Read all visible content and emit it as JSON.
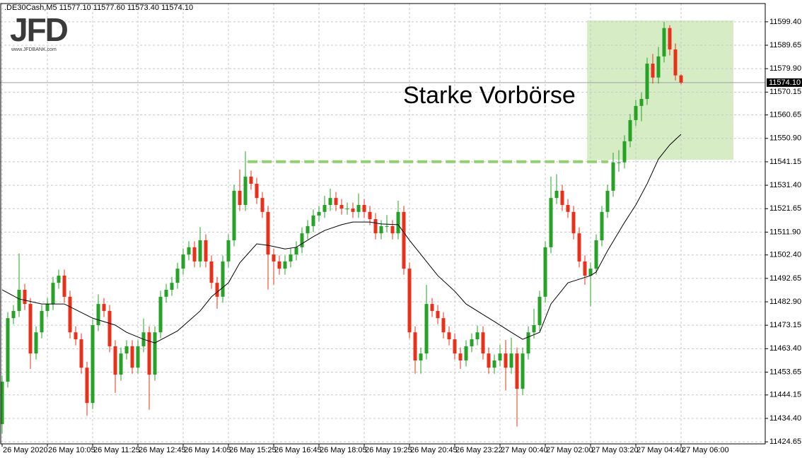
{
  "chart_data": {
    "type": "candlestick",
    "header_text": ".DE30Cash,M5  11577.10 11577.60 11573.40 11574.10",
    "logo": {
      "title": "JFD",
      "subtitle": "www.JFDBANK.com"
    },
    "annotation": "Starke Vorbörse",
    "up_color": "#26a326",
    "down_color": "#e8301a",
    "open": [
      11432.0,
      11449.7,
      11476.1,
      11479.1,
      11487.9,
      11482.0,
      11461.4,
      11470.2,
      11479.1,
      11482.0,
      11490.8,
      11493.8,
      11485.0,
      11470.2,
      11467.3,
      11455.5,
      11440.8,
      11473.2,
      11482.0,
      11479.1,
      11464.4,
      11452.6,
      11461.4,
      11464.4,
      11455.5,
      11464.4,
      11470.2,
      11452.6,
      11470.2,
      11485.0,
      11487.9,
      11490.8,
      11496.7,
      11502.6,
      11505.6,
      11499.7,
      11508.5,
      11499.7,
      11490.8,
      11485.0,
      11499.7,
      11508.5,
      11529.1,
      11523.2,
      11535.0,
      11532.0,
      11526.1,
      11520.3,
      11502.6,
      11499.7,
      11496.7,
      11499.7,
      11502.6,
      11505.6,
      11511.4,
      11514.4,
      11518.8,
      11520.3,
      11523.2,
      11526.1,
      11523.2,
      11521.7,
      11521.7,
      11520.3,
      11523.2,
      11520.3,
      11517.3,
      11511.4,
      11514.4,
      11514.4,
      11511.4,
      11520.3,
      11496.7,
      11470.2,
      11458.5,
      11461.4,
      11482.0,
      11479.1,
      11476.1,
      11470.2,
      11467.3,
      11461.4,
      11458.5,
      11464.4,
      11467.3,
      11470.2,
      11461.4,
      11455.5,
      11458.5,
      11461.4,
      11455.5,
      11461.4,
      11446.7,
      11461.4,
      11470.2,
      11473.2,
      11485.0,
      11505.6,
      11526.1,
      11529.1,
      11523.2,
      11520.3,
      11511.4,
      11499.7,
      11493.8,
      11496.7,
      11508.5,
      11520.3,
      11529.1,
      11540.9,
      11540.9,
      11549.7,
      11558.5,
      11564.4,
      11567.3,
      11582.0,
      11576.2,
      11585.0,
      11596.8,
      11587.9,
      11577.1
    ],
    "high": [
      11452.2,
      11478.6,
      11481.6,
      11503.0,
      11490.4,
      11484.5,
      11472.7,
      11481.6,
      11484.5,
      11493.3,
      11496.3,
      11496.3,
      11487.5,
      11472.7,
      11469.8,
      11458.0,
      11475.7,
      11486.0,
      11484.5,
      11481.6,
      11466.9,
      11463.9,
      11466.9,
      11466.9,
      11466.9,
      11476.0,
      11472.7,
      11472.7,
      11487.5,
      11490.4,
      11493.3,
      11499.2,
      11505.1,
      11508.1,
      11508.1,
      11514.0,
      11511.0,
      11502.2,
      11493.3,
      11502.2,
      11511.0,
      11531.6,
      11538.0,
      11545.5,
      11537.5,
      11534.5,
      11528.6,
      11522.8,
      11505.1,
      11502.2,
      11502.2,
      11505.1,
      11508.1,
      11513.9,
      11516.9,
      11521.3,
      11522.8,
      11527.0,
      11530.0,
      11528.6,
      11525.7,
      11524.2,
      11524.2,
      11528.0,
      11525.7,
      11522.8,
      11519.8,
      11516.9,
      11519.0,
      11516.9,
      11525.0,
      11522.8,
      11499.2,
      11472.7,
      11463.9,
      11490.0,
      11484.5,
      11481.6,
      11478.6,
      11472.7,
      11469.8,
      11463.9,
      11466.9,
      11469.8,
      11473.0,
      11472.7,
      11463.9,
      11461.0,
      11465.0,
      11467.0,
      11468.0,
      11463.9,
      11463.9,
      11472.7,
      11480.0,
      11487.5,
      11508.1,
      11535.0,
      11536.0,
      11531.6,
      11525.7,
      11522.8,
      11513.9,
      11502.2,
      11499.2,
      11511.0,
      11522.8,
      11531.6,
      11545.0,
      11546.0,
      11552.2,
      11561.0,
      11566.9,
      11570.0,
      11584.5,
      11586.0,
      11589.0,
      11599.4,
      11598.0,
      11590.4,
      11577.6
    ],
    "low": [
      11428.0,
      11447.2,
      11473.6,
      11476.6,
      11479.5,
      11455.0,
      11458.9,
      11467.7,
      11476.6,
      11479.5,
      11488.3,
      11482.5,
      11467.7,
      11464.8,
      11453.0,
      11435.5,
      11438.3,
      11470.7,
      11476.6,
      11461.9,
      11445.0,
      11450.1,
      11458.9,
      11453.0,
      11453.0,
      11461.9,
      11438.0,
      11450.1,
      11467.7,
      11482.5,
      11485.4,
      11488.3,
      11494.2,
      11500.1,
      11497.2,
      11497.2,
      11497.2,
      11488.3,
      11480.0,
      11482.5,
      11497.2,
      11506.0,
      11520.7,
      11520.7,
      11529.5,
      11523.6,
      11517.8,
      11488.0,
      11490.0,
      11494.2,
      11494.2,
      11497.2,
      11500.1,
      11503.1,
      11508.9,
      11511.9,
      11516.3,
      11517.8,
      11520.7,
      11520.7,
      11519.2,
      11519.2,
      11517.8,
      11517.8,
      11517.8,
      11514.8,
      11508.9,
      11508.9,
      11511.9,
      11508.9,
      11508.9,
      11494.2,
      11467.7,
      11453.0,
      11453.0,
      11458.9,
      11476.6,
      11473.6,
      11467.7,
      11464.8,
      11458.9,
      11455.0,
      11456.0,
      11461.9,
      11464.8,
      11458.9,
      11453.0,
      11453.0,
      11456.0,
      11446.0,
      11453.0,
      11431.0,
      11444.2,
      11458.9,
      11467.7,
      11470.7,
      11482.5,
      11503.1,
      11523.6,
      11520.7,
      11517.8,
      11508.9,
      11497.2,
      11490.0,
      11481.0,
      11494.2,
      11506.0,
      11517.8,
      11526.6,
      11537.0,
      11538.4,
      11547.2,
      11556.0,
      11558.0,
      11564.8,
      11573.7,
      11573.7,
      11582.5,
      11585.4,
      11575.0,
      11573.4
    ],
    "close": [
      11449.7,
      11476.1,
      11479.1,
      11487.9,
      11482.0,
      11461.4,
      11470.2,
      11479.1,
      11482.0,
      11490.8,
      11493.8,
      11485.0,
      11470.2,
      11467.3,
      11455.5,
      11440.8,
      11473.2,
      11482.0,
      11479.1,
      11464.4,
      11452.6,
      11461.4,
      11464.4,
      11455.5,
      11464.4,
      11470.2,
      11452.6,
      11470.2,
      11485.0,
      11487.9,
      11490.8,
      11496.7,
      11502.6,
      11505.6,
      11499.7,
      11508.5,
      11499.7,
      11490.8,
      11485.0,
      11499.7,
      11508.5,
      11529.1,
      11523.2,
      11535.0,
      11532.0,
      11526.1,
      11520.3,
      11502.6,
      11499.7,
      11496.7,
      11499.7,
      11502.6,
      11505.6,
      11511.4,
      11514.4,
      11518.8,
      11520.3,
      11523.2,
      11526.1,
      11523.2,
      11521.7,
      11521.7,
      11520.3,
      11523.2,
      11520.3,
      11517.3,
      11511.4,
      11514.4,
      11514.4,
      11511.4,
      11520.3,
      11496.7,
      11470.2,
      11458.5,
      11461.4,
      11482.0,
      11479.1,
      11476.1,
      11470.2,
      11467.3,
      11461.4,
      11458.5,
      11464.4,
      11467.3,
      11470.2,
      11461.4,
      11455.5,
      11458.5,
      11461.4,
      11455.5,
      11461.4,
      11446.7,
      11461.4,
      11470.2,
      11473.2,
      11485.0,
      11505.6,
      11526.1,
      11529.1,
      11523.2,
      11520.3,
      11511.4,
      11499.7,
      11493.8,
      11496.7,
      11508.5,
      11520.3,
      11529.1,
      11540.9,
      11540.9,
      11549.7,
      11558.5,
      11564.4,
      11567.3,
      11582.0,
      11576.2,
      11585.0,
      11596.8,
      11587.9,
      11577.1,
      11574.1
    ],
    "ma": {
      "color": "#000000",
      "x": [
        0,
        3,
        7,
        11,
        16,
        20,
        22,
        25,
        27,
        31,
        35,
        37,
        40,
        42,
        45,
        47,
        50,
        52,
        55,
        57,
        60,
        62,
        65,
        67,
        70,
        72,
        75,
        77,
        80,
        82,
        85,
        87,
        90,
        92,
        95,
        97,
        100,
        102,
        104,
        105,
        107,
        110,
        112,
        114,
        116,
        118,
        120
      ],
      "values": [
        11487.9,
        11484.1,
        11482.0,
        11482.0,
        11476.1,
        11473.2,
        11470.2,
        11467.3,
        11465.8,
        11470.8,
        11479.1,
        11485.0,
        11490.8,
        11499.1,
        11507.0,
        11506.4,
        11504.9,
        11505.6,
        11510.0,
        11512.6,
        11515.0,
        11516.1,
        11516.1,
        11515.3,
        11515.0,
        11508.5,
        11499.7,
        11493.8,
        11487.3,
        11482.0,
        11477.6,
        11474.7,
        11470.2,
        11467.3,
        11470.2,
        11482.0,
        11490.8,
        11492.3,
        11493.8,
        11495.3,
        11504.1,
        11515.9,
        11523.2,
        11532.0,
        11542.3,
        11548.2,
        11552.6
      ]
    },
    "highlight": {
      "color": "#d6ecc4",
      "x": [
        103.4,
        129.25
      ],
      "y": [
        11542.0,
        11600.0
      ]
    },
    "level": {
      "color": "#8fd16a",
      "value": 11541.2,
      "x": [
        43.4,
        107.1
      ]
    },
    "current_price": {
      "value": 11574.1,
      "label": "11574.10"
    },
    "xlim": [
      -0.375,
      134.875
    ],
    "ylim": [
      11423.8,
      11607.0
    ],
    "grid": true,
    "xticks": [
      {
        "value": 0,
        "label": "26 May 2020"
      },
      {
        "value": 8,
        "label": "26 May 10:05"
      },
      {
        "value": 16,
        "label": "26 May 11:25"
      },
      {
        "value": 24,
        "label": "26 May 12:45"
      },
      {
        "value": 32,
        "label": "26 May 14:05"
      },
      {
        "value": 40,
        "label": "26 May 15:25"
      },
      {
        "value": 48,
        "label": "26 May 16:45"
      },
      {
        "value": 56,
        "label": "26 May 18:05"
      },
      {
        "value": 64,
        "label": "26 May 19:25"
      },
      {
        "value": 72,
        "label": "26 May 20:45"
      },
      {
        "value": 80,
        "label": "26 May 23:22"
      },
      {
        "value": 88,
        "label": "27 May 00:40"
      },
      {
        "value": 96,
        "label": "27 May 02:00"
      },
      {
        "value": 104,
        "label": "27 May 03:20"
      },
      {
        "value": 112,
        "label": "27 May 04:40"
      },
      {
        "value": 120,
        "label": "27 May 06:00"
      }
    ],
    "yticks": [
      {
        "value": 11599.4,
        "label": "11599.40"
      },
      {
        "value": 11589.65,
        "label": "11589.65"
      },
      {
        "value": 11579.9,
        "label": "11579.90"
      },
      {
        "value": 11570.15,
        "label": "11570.15"
      },
      {
        "value": 11560.65,
        "label": "11560.65"
      },
      {
        "value": 11550.9,
        "label": "11550.90"
      },
      {
        "value": 11541.15,
        "label": "11541.15"
      },
      {
        "value": 11531.4,
        "label": "11531.40"
      },
      {
        "value": 11521.65,
        "label": "11521.65"
      },
      {
        "value": 11511.9,
        "label": "11511.90"
      },
      {
        "value": 11502.4,
        "label": "11502.40"
      },
      {
        "value": 11492.65,
        "label": "11492.65"
      },
      {
        "value": 11482.9,
        "label": "11482.90"
      },
      {
        "value": 11473.15,
        "label": "11473.15"
      },
      {
        "value": 11463.4,
        "label": "11463.40"
      },
      {
        "value": 11453.65,
        "label": "11453.65"
      },
      {
        "value": 11444.15,
        "label": "11444.15"
      },
      {
        "value": 11434.4,
        "label": "11434.40"
      },
      {
        "value": 11424.65,
        "label": "11424.65"
      }
    ]
  }
}
